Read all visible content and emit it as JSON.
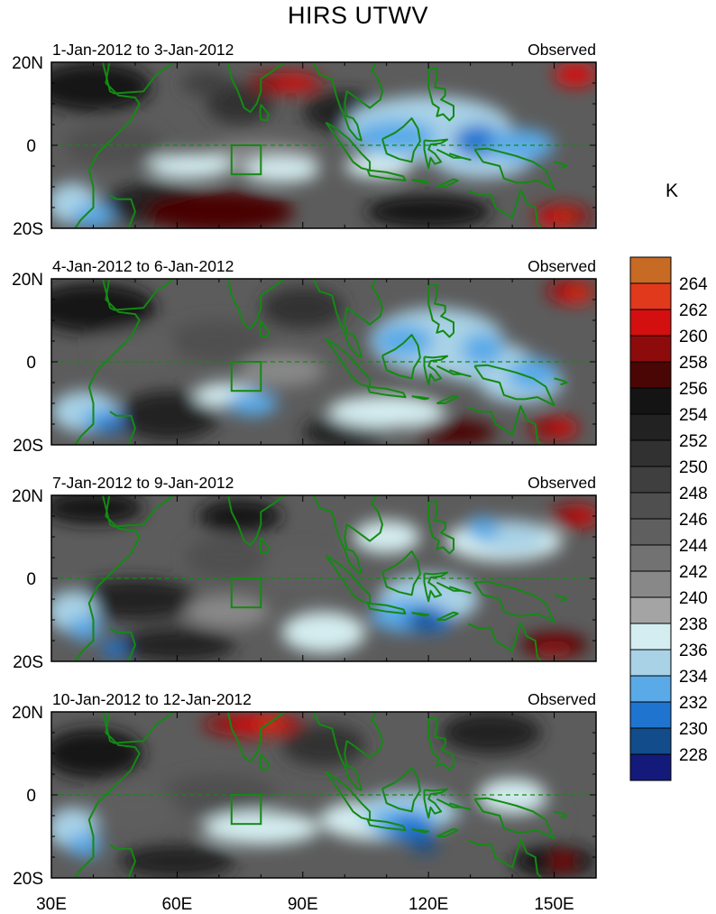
{
  "title": "HIRS UTWV",
  "unit": "K",
  "panels": [
    {
      "date_range": "1-Jan-2012 to 3-Jan-2012",
      "label": "Observed"
    },
    {
      "date_range": "4-Jan-2012 to 6-Jan-2012",
      "label": "Observed"
    },
    {
      "date_range": "7-Jan-2012 to 9-Jan-2012",
      "label": "Observed"
    },
    {
      "date_range": "10-Jan-2012 to 12-Jan-2012",
      "label": "Observed"
    }
  ],
  "lat_ticks": [
    "20N",
    "0",
    "20S"
  ],
  "lon_ticks": [
    "30E",
    "60E",
    "90E",
    "120E",
    "150E"
  ],
  "colorbar": {
    "labels": [
      "264",
      "262",
      "260",
      "258",
      "256",
      "254",
      "252",
      "250",
      "248",
      "246",
      "244",
      "242",
      "240",
      "238",
      "236",
      "234",
      "232",
      "230",
      "228"
    ],
    "colors": [
      "#c66a24",
      "#e0391c",
      "#d40f10",
      "#8e0b0b",
      "#4a0505",
      "#141414",
      "#222222",
      "#313131",
      "#3f3f3f",
      "#4f4f4f",
      "#5f5f5f",
      "#727272",
      "#888888",
      "#a4a4a4",
      "#d4edf0",
      "#a9d2e6",
      "#5aaae8",
      "#1f74d0",
      "#124c8a",
      "#141a7a"
    ]
  },
  "colors": {
    "coast": "#138a13",
    "equator": "#138a13"
  }
}
